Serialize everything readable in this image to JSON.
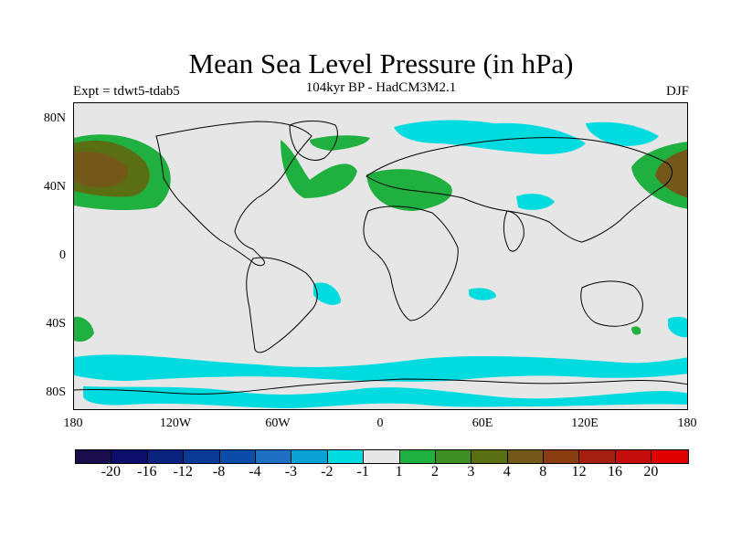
{
  "header": {
    "title": "Mean Sea Level Pressure (in hPa)",
    "subtitle": "104kyr BP - HadCM3M2.1",
    "experiment": "Expt = tdwt5-tdab5",
    "season": "DJF"
  },
  "axes": {
    "y_labels": [
      "80N",
      "40N",
      "0",
      "40S",
      "80S"
    ],
    "x_labels": [
      "180",
      "120W",
      "60W",
      "0",
      "60E",
      "120E",
      "180"
    ]
  },
  "legend": {
    "labels": [
      "-20",
      "-16",
      "-12",
      "-8",
      "-4",
      "-3",
      "-2",
      "-1",
      "1",
      "2",
      "3",
      "4",
      "8",
      "12",
      "16",
      "20"
    ],
    "colors": [
      "#1a0d4d",
      "#0d0d6b",
      "#0a237f",
      "#0a3a94",
      "#0a4da8",
      "#1f70c2",
      "#0ba0d6",
      "#00dbe0",
      "#e6e6e6",
      "#20b040",
      "#3b8e1f",
      "#5a6f14",
      "#74581a",
      "#8b3d12",
      "#a41f0f",
      "#c40d0d",
      "#e00000"
    ]
  },
  "colors": {
    "ocean_land_background": "#e6e6e6",
    "negative_anomaly": "#00dbe0",
    "positive_anomaly": "#20b040"
  }
}
